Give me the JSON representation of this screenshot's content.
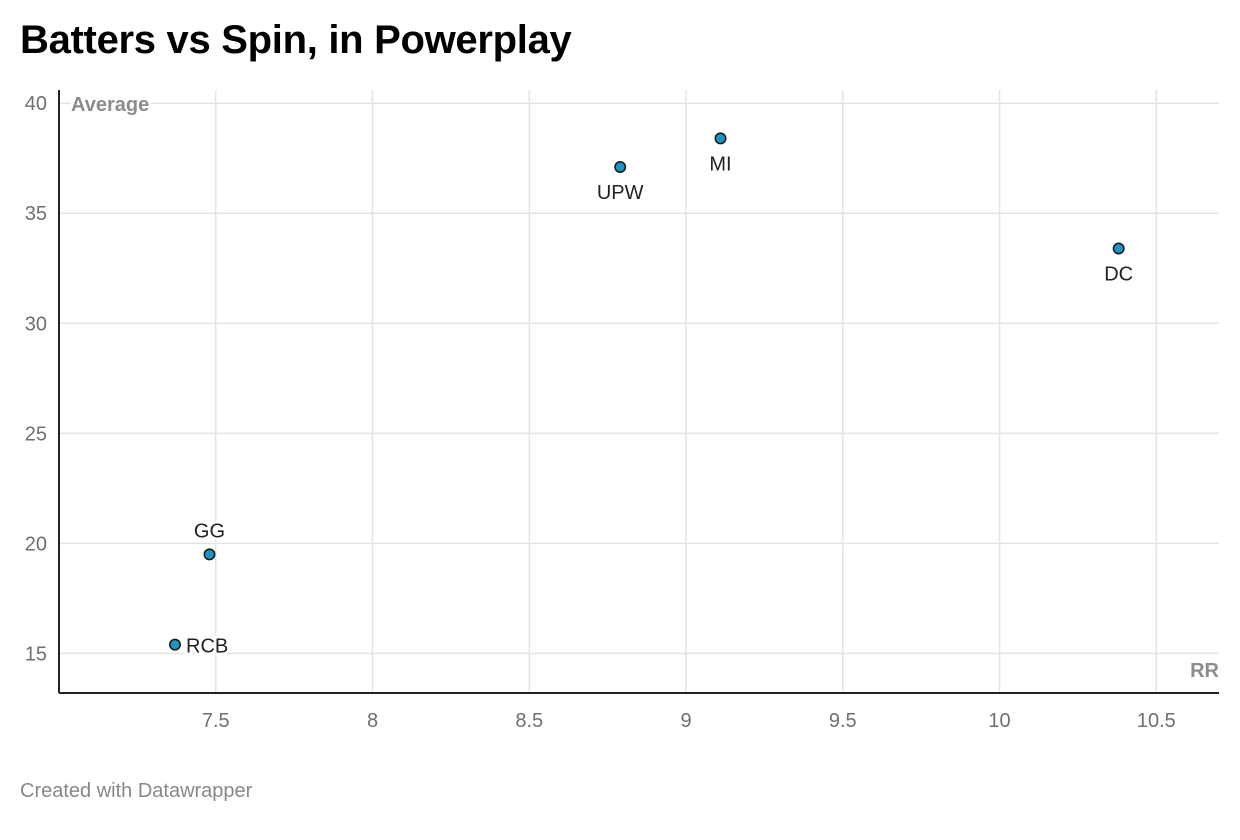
{
  "title": "Batters vs Spin, in Powerplay",
  "footer": "Created with Datawrapper",
  "colors": {
    "point_fill": "#1a96c6",
    "point_stroke": "#1b1b1b",
    "grid": "#e4e4e4",
    "axis": "#222222"
  },
  "chart_data": {
    "type": "scatter",
    "title": "Batters vs Spin, in Powerplay",
    "xlabel": "RR",
    "ylabel": "Average",
    "xlim": [
      7.0,
      10.7
    ],
    "ylim": [
      13.2,
      40.6
    ],
    "xticks": [
      7.5,
      8,
      8.5,
      9,
      9.5,
      10,
      10.5
    ],
    "yticks": [
      15,
      20,
      25,
      30,
      35,
      40
    ],
    "grid": true,
    "legend": "none",
    "points": [
      {
        "label": "MI",
        "x": 9.11,
        "y": 38.4,
        "label_pos": "below"
      },
      {
        "label": "UPW",
        "x": 8.79,
        "y": 37.1,
        "label_pos": "below"
      },
      {
        "label": "DC",
        "x": 10.38,
        "y": 33.4,
        "label_pos": "below"
      },
      {
        "label": "GG",
        "x": 7.48,
        "y": 19.5,
        "label_pos": "above"
      },
      {
        "label": "RCB",
        "x": 7.37,
        "y": 15.4,
        "label_pos": "right"
      }
    ]
  }
}
